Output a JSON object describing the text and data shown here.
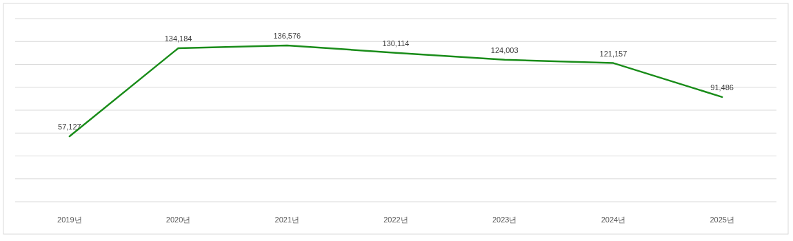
{
  "chart_data": {
    "type": "line",
    "categories": [
      "2019년",
      "2020년",
      "2021년",
      "2022년",
      "2023년",
      "2024년",
      "2025년"
    ],
    "series": [
      {
        "color": "#198c19",
        "values": [
          57127,
          134184,
          136576,
          130114,
          124003,
          121157,
          91486
        ],
        "value_labels": [
          "57,127",
          "134,184",
          "136,576",
          "130,114",
          "124,003",
          "121,157",
          "91,486"
        ]
      }
    ],
    "grid": "y",
    "tick_labels": "x",
    "marker": "none",
    "line_style": "solid"
  }
}
